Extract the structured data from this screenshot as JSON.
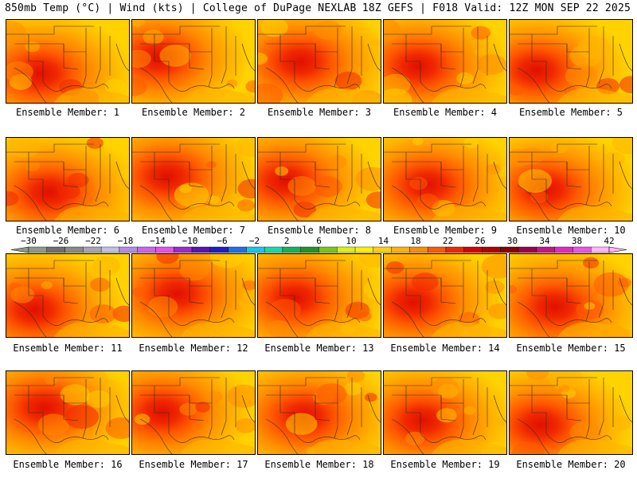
{
  "header": {
    "left": "850mb Temp (°C) | Wind (kts) | College of DuPage NEXLAB",
    "right": "18Z GEFS | F018 Valid: 12Z MON SEP 22 2025"
  },
  "panels": [
    {
      "label": "Ensemble Member: 1"
    },
    {
      "label": "Ensemble Member: 2"
    },
    {
      "label": "Ensemble Member: 3"
    },
    {
      "label": "Ensemble Member: 4"
    },
    {
      "label": "Ensemble Member: 5"
    },
    {
      "label": "Ensemble Member: 6"
    },
    {
      "label": "Ensemble Member: 7"
    },
    {
      "label": "Ensemble Member: 8"
    },
    {
      "label": "Ensemble Member: 9"
    },
    {
      "label": "Ensemble Member: 10"
    },
    {
      "label": "Ensemble Member: 11"
    },
    {
      "label": "Ensemble Member: 12"
    },
    {
      "label": "Ensemble Member: 13"
    },
    {
      "label": "Ensemble Member: 14"
    },
    {
      "label": "Ensemble Member: 15"
    },
    {
      "label": "Ensemble Member: 16"
    },
    {
      "label": "Ensemble Member: 17"
    },
    {
      "label": "Ensemble Member: 18"
    },
    {
      "label": "Ensemble Member: 19"
    },
    {
      "label": "Ensemble Member: 20"
    }
  ],
  "colorbar": {
    "labels": [
      "−30",
      "−26",
      "−22",
      "−18",
      "−14",
      "−10",
      "−6",
      "−2",
      "2",
      "6",
      "10",
      "14",
      "18",
      "22",
      "26",
      "30",
      "34",
      "38",
      "42"
    ],
    "colors": [
      "#8c9c8c",
      "#6f6f6f",
      "#8a8a8a",
      "#a6a6b4",
      "#c0c0e6",
      "#b48ce6",
      "#c864f0",
      "#e650f0",
      "#a028d2",
      "#5a14b4",
      "#1e1ec8",
      "#1e6ef0",
      "#14c8f0",
      "#14dcaa",
      "#14b45a",
      "#1e9628",
      "#78c814",
      "#dcf014",
      "#fff000",
      "#ffd200",
      "#ffb400",
      "#ff8c00",
      "#ff5a00",
      "#f02800",
      "#dc0000",
      "#b40000",
      "#8c0000",
      "#a00050",
      "#c8148c",
      "#e628c8",
      "#f050f0",
      "#ffb4ff"
    ]
  }
}
